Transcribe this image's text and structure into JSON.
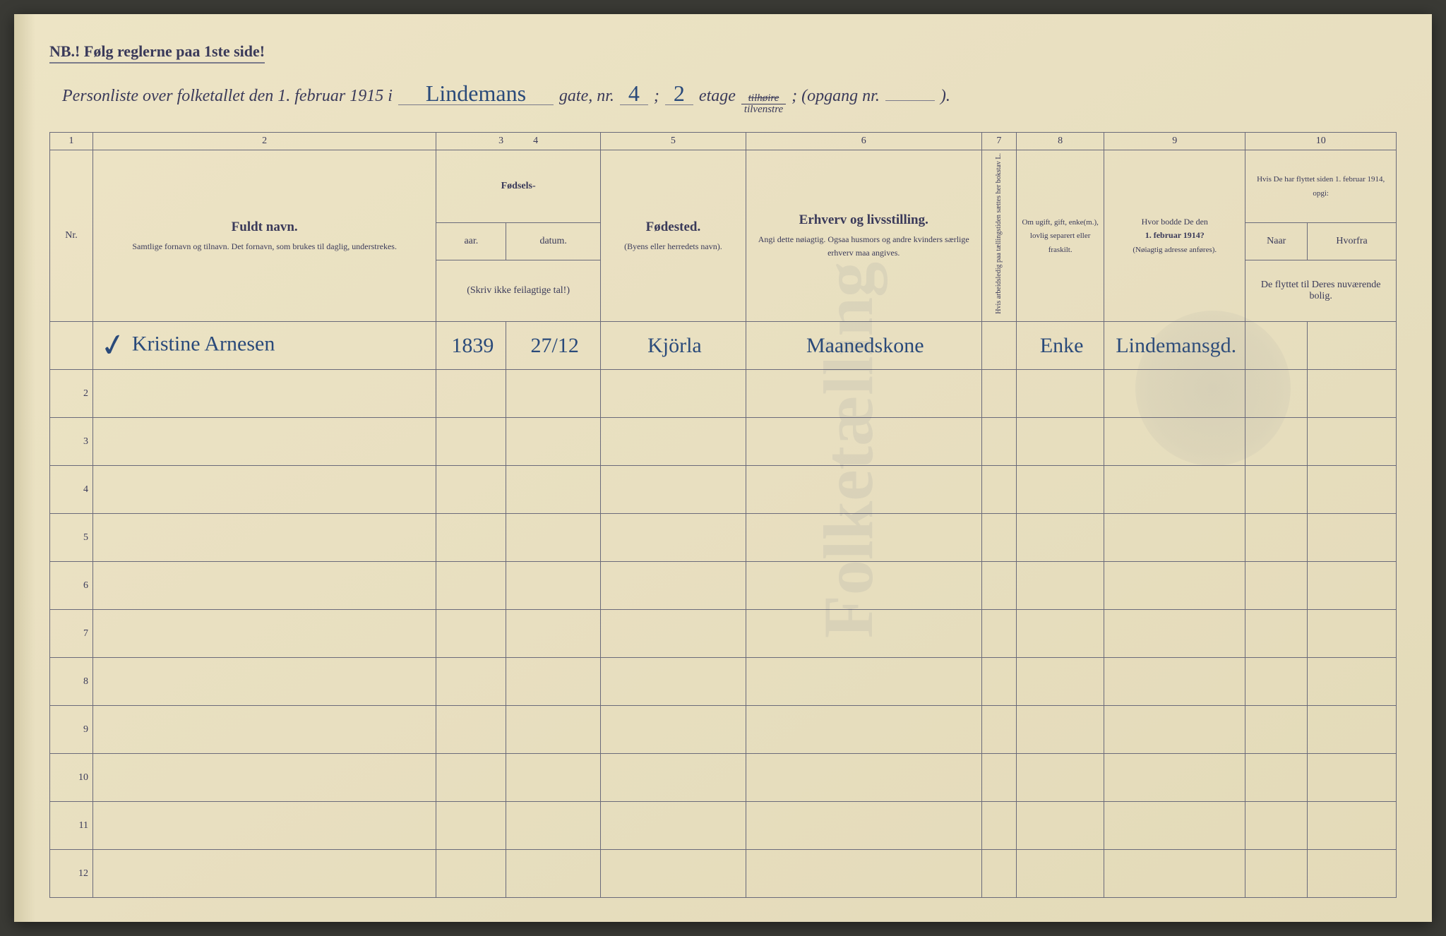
{
  "colors": {
    "paper": "#ede4c5",
    "ink_print": "#3a3a5a",
    "ink_handwritten": "#2a4a7a",
    "rule_line": "#6a6a7a"
  },
  "header": {
    "note": "NB.! Følg reglerne paa 1ste side!",
    "title_prefix": "Personliste over folketallet den 1. februar 1915 i",
    "street_handwritten": "Lindemans",
    "gate_label": "gate, nr.",
    "gate_nr": "4",
    "semicolon": ";",
    "etage_nr": "2",
    "etage_label": "etage",
    "fraction_top": "tilhøire",
    "fraction_bot": "tilvenstre",
    "opgang_label": "; (opgang nr.",
    "opgang_nr": "",
    "close_paren": ")."
  },
  "columns": {
    "numbers": [
      "1",
      "2",
      "3",
      "4",
      "5",
      "6",
      "7",
      "8",
      "9",
      "10"
    ],
    "c1": "Nr.",
    "c2_big": "Fuldt navn.",
    "c2_small": "Samtlige fornavn og tilnavn.  Det fornavn, som brukes til daglig, understrekes.",
    "c34_top": "Fødsels-",
    "c3": "aar.",
    "c4": "datum.",
    "c34_note": "(Skriv ikke feilagtige tal!)",
    "c5_big": "Fødested.",
    "c5_small": "(Byens eller herredets navn).",
    "c6_big": "Erhverv og livsstilling.",
    "c6_small": "Angi dette nøiagtig. Ogsaa husmors og andre kvinders særlige erhverv maa angives.",
    "c7": "Hvis arbeidsledig paa tællingstiden sættes her bokstav L.",
    "c8": "Om ugift, gift, enke(m.), lovlig separert eller fraskilt.",
    "c9_a": "Hvor bodde De den",
    "c9_b": "1. februar 1914?",
    "c9_c": "(Nøiagtig adresse anføres).",
    "c10_top": "Hvis De har flyttet siden 1. februar 1914, opgi:",
    "c10_a": "Naar",
    "c10_b": "Hvorfra",
    "c10_c": "De flyttet til Deres nuværende bolig."
  },
  "rows": [
    {
      "nr": "",
      "checkmark": true,
      "name": "Kristine Arnesen",
      "year": "1839",
      "date": "27/12",
      "birthplace": "Kjörla",
      "occupation": "Maanedskone",
      "col7": "",
      "marital": "Enke",
      "addr1914": "Lindemansgd.",
      "moved_when": "",
      "moved_from": ""
    },
    {
      "nr": "2"
    },
    {
      "nr": "3"
    },
    {
      "nr": "4"
    },
    {
      "nr": "5"
    },
    {
      "nr": "6"
    },
    {
      "nr": "7"
    },
    {
      "nr": "8"
    },
    {
      "nr": "9"
    },
    {
      "nr": "10"
    },
    {
      "nr": "11"
    },
    {
      "nr": "12"
    }
  ],
  "column_widths_pct": [
    3.2,
    25.5,
    5.2,
    7.0,
    10.8,
    17.5,
    2.6,
    6.5,
    10.5,
    4.6,
    6.6
  ],
  "typography": {
    "header_note_pt": 22,
    "title_pt": 24,
    "handwritten_pt": 32,
    "colheader_big_pt": 19,
    "colheader_small_pt": 12,
    "rownum_pt": 14,
    "cell_handwritten_pt": 30
  }
}
